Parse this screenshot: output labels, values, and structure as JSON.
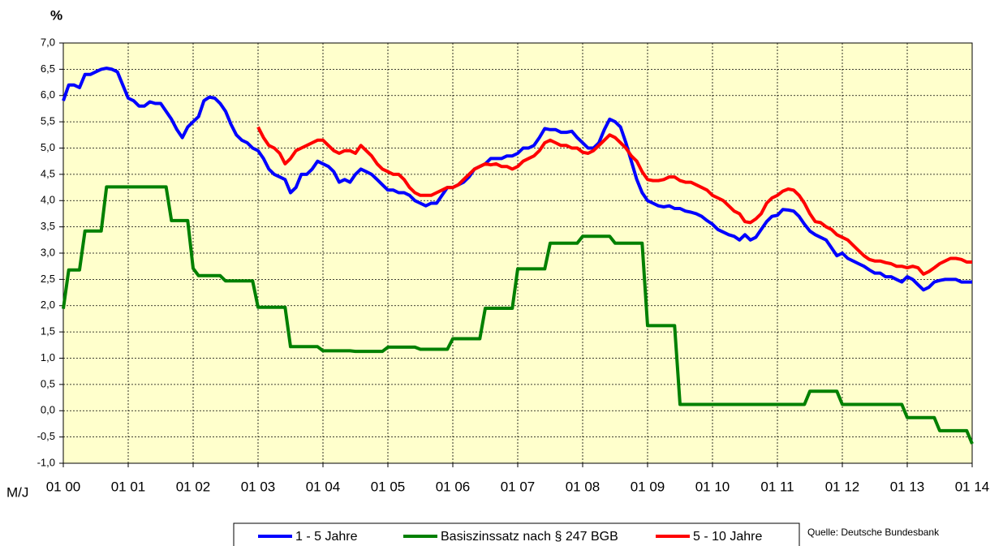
{
  "chart_data": {
    "type": "line",
    "ylabel": "%",
    "xlabel": "M/J",
    "source": "Quelle: Deutsche Bundesbank",
    "grid": true,
    "background": "#ffffcc",
    "categories": [
      "01 00",
      null,
      null,
      null,
      null,
      null,
      null,
      null,
      null,
      null,
      null,
      null,
      "01 01",
      null,
      null,
      null,
      null,
      null,
      null,
      null,
      null,
      null,
      null,
      null,
      "01 02",
      null,
      null,
      null,
      null,
      null,
      null,
      null,
      null,
      null,
      null,
      null,
      "01 03",
      null,
      null,
      null,
      null,
      null,
      null,
      null,
      null,
      null,
      null,
      null,
      "01 04",
      null,
      null,
      null,
      null,
      null,
      null,
      null,
      null,
      null,
      null,
      null,
      "01 05",
      null,
      null,
      null,
      null,
      null,
      null,
      null,
      null,
      null,
      null,
      null,
      "01 06",
      null,
      null,
      null,
      null,
      null,
      null,
      null,
      null,
      null,
      null,
      null,
      "01 07",
      null,
      null,
      null,
      null,
      null,
      null,
      null,
      null,
      null,
      null,
      null,
      "01 08",
      null,
      null,
      null,
      null,
      null,
      null,
      null,
      null,
      null,
      null,
      null,
      "01 09",
      null,
      null,
      null,
      null,
      null,
      null,
      null,
      null,
      null,
      null,
      null,
      "01 10",
      null,
      null,
      null,
      null,
      null,
      null,
      null,
      null,
      null,
      null,
      null,
      "01 11",
      null,
      null,
      null,
      null,
      null,
      null,
      null,
      null,
      null,
      null,
      null,
      "01 12",
      null,
      null,
      null,
      null,
      null,
      null,
      null,
      null,
      null,
      null,
      null,
      "01 13",
      null,
      null,
      null,
      null,
      null,
      null,
      null,
      null,
      null,
      null,
      null,
      "01 14"
    ],
    "ylim": [
      -1,
      7
    ],
    "yticks": [
      {
        "value": -1,
        "label": "-1,0"
      },
      {
        "value": -0.5,
        "label": "-0,5"
      },
      {
        "value": 0,
        "label": "0,0"
      },
      {
        "value": 0.5,
        "label": "0,5"
      },
      {
        "value": 1,
        "label": "1,0"
      },
      {
        "value": 1.5,
        "label": "1,5"
      },
      {
        "value": 2,
        "label": "2,0"
      },
      {
        "value": 2.5,
        "label": "2,5"
      },
      {
        "value": 3,
        "label": "3,0"
      },
      {
        "value": 3.5,
        "label": "3,5"
      },
      {
        "value": 4,
        "label": "4,0"
      },
      {
        "value": 4.5,
        "label": "4,5"
      },
      {
        "value": 5,
        "label": "5,0"
      },
      {
        "value": 5.5,
        "label": "5,5"
      },
      {
        "value": 6,
        "label": "6,0"
      },
      {
        "value": 6.5,
        "label": "6,5"
      },
      {
        "value": 7,
        "label": "7,0"
      }
    ],
    "series": [
      {
        "name": "1 - 5 Jahre",
        "color": "#0000ff",
        "values": [
          5.9,
          6.2,
          6.2,
          6.15,
          6.4,
          6.4,
          6.45,
          6.5,
          6.52,
          6.5,
          6.45,
          6.2,
          5.95,
          5.9,
          5.8,
          5.8,
          5.88,
          5.85,
          5.85,
          5.7,
          5.55,
          5.35,
          5.2,
          5.4,
          5.5,
          5.6,
          5.9,
          5.97,
          5.95,
          5.85,
          5.7,
          5.45,
          5.25,
          5.15,
          5.1,
          5.0,
          4.95,
          4.8,
          4.6,
          4.5,
          4.45,
          4.4,
          4.15,
          4.25,
          4.5,
          4.5,
          4.6,
          4.75,
          4.7,
          4.65,
          4.55,
          4.35,
          4.4,
          4.35,
          4.5,
          4.6,
          4.55,
          4.5,
          4.4,
          4.3,
          4.2,
          4.2,
          4.15,
          4.15,
          4.1,
          4.0,
          3.95,
          3.9,
          3.95,
          3.95,
          4.1,
          4.25,
          4.25,
          4.3,
          4.35,
          4.45,
          4.6,
          4.65,
          4.7,
          4.8,
          4.8,
          4.8,
          4.85,
          4.85,
          4.9,
          5.0,
          5.0,
          5.05,
          5.2,
          5.37,
          5.35,
          5.35,
          5.3,
          5.3,
          5.32,
          5.2,
          5.1,
          5.0,
          5.0,
          5.1,
          5.35,
          5.55,
          5.5,
          5.4,
          5.1,
          4.75,
          4.4,
          4.15,
          4.0,
          3.95,
          3.9,
          3.88,
          3.9,
          3.85,
          3.85,
          3.8,
          3.78,
          3.75,
          3.7,
          3.62,
          3.55,
          3.45,
          3.4,
          3.35,
          3.32,
          3.25,
          3.35,
          3.25,
          3.3,
          3.45,
          3.6,
          3.7,
          3.72,
          3.83,
          3.82,
          3.8,
          3.7,
          3.55,
          3.42,
          3.35,
          3.3,
          3.25,
          3.1,
          2.95,
          3.0,
          2.9,
          2.85,
          2.8,
          2.75,
          2.68,
          2.62,
          2.62,
          2.55,
          2.55,
          2.5,
          2.45,
          2.55,
          2.5,
          2.4,
          2.3,
          2.35,
          2.45,
          2.48,
          2.5,
          2.5,
          2.5,
          2.45,
          2.45,
          2.45
        ]
      },
      {
        "name": "Basiszinssatz nach § 247 BGB",
        "color": "#008000",
        "values": [
          1.94,
          2.68,
          2.68,
          2.68,
          3.42,
          3.42,
          3.42,
          3.42,
          4.26,
          4.26,
          4.26,
          4.26,
          4.26,
          4.26,
          4.26,
          4.26,
          4.26,
          4.26,
          4.26,
          4.26,
          3.62,
          3.62,
          3.62,
          3.62,
          2.71,
          2.57,
          2.57,
          2.57,
          2.57,
          2.57,
          2.47,
          2.47,
          2.47,
          2.47,
          2.47,
          2.47,
          1.97,
          1.97,
          1.97,
          1.97,
          1.97,
          1.97,
          1.22,
          1.22,
          1.22,
          1.22,
          1.22,
          1.22,
          1.14,
          1.14,
          1.14,
          1.14,
          1.14,
          1.14,
          1.13,
          1.13,
          1.13,
          1.13,
          1.13,
          1.13,
          1.21,
          1.21,
          1.21,
          1.21,
          1.21,
          1.21,
          1.17,
          1.17,
          1.17,
          1.17,
          1.17,
          1.17,
          1.37,
          1.37,
          1.37,
          1.37,
          1.37,
          1.37,
          1.95,
          1.95,
          1.95,
          1.95,
          1.95,
          1.95,
          2.7,
          2.7,
          2.7,
          2.7,
          2.7,
          2.7,
          3.19,
          3.19,
          3.19,
          3.19,
          3.19,
          3.19,
          3.32,
          3.32,
          3.32,
          3.32,
          3.32,
          3.32,
          3.19,
          3.19,
          3.19,
          3.19,
          3.19,
          3.19,
          1.62,
          1.62,
          1.62,
          1.62,
          1.62,
          1.62,
          0.12,
          0.12,
          0.12,
          0.12,
          0.12,
          0.12,
          0.12,
          0.12,
          0.12,
          0.12,
          0.12,
          0.12,
          0.12,
          0.12,
          0.12,
          0.12,
          0.12,
          0.12,
          0.12,
          0.12,
          0.12,
          0.12,
          0.12,
          0.12,
          0.37,
          0.37,
          0.37,
          0.37,
          0.37,
          0.37,
          0.12,
          0.12,
          0.12,
          0.12,
          0.12,
          0.12,
          0.12,
          0.12,
          0.12,
          0.12,
          0.12,
          0.12,
          -0.13,
          -0.13,
          -0.13,
          -0.13,
          -0.13,
          -0.13,
          -0.38,
          -0.38,
          -0.38,
          -0.38,
          -0.38,
          -0.38,
          -0.63
        ]
      },
      {
        "name": "5 - 10 Jahre",
        "color": "#ff0000",
        "values": [
          null,
          null,
          null,
          null,
          null,
          null,
          null,
          null,
          null,
          null,
          null,
          null,
          null,
          null,
          null,
          null,
          null,
          null,
          null,
          null,
          null,
          null,
          null,
          null,
          null,
          null,
          null,
          null,
          null,
          null,
          null,
          null,
          null,
          null,
          null,
          null,
          5.4,
          5.2,
          5.05,
          5.0,
          4.9,
          4.7,
          4.8,
          4.95,
          5.0,
          5.05,
          5.1,
          5.15,
          5.15,
          5.05,
          4.95,
          4.9,
          4.95,
          4.95,
          4.9,
          5.05,
          4.95,
          4.85,
          4.7,
          4.6,
          4.55,
          4.5,
          4.5,
          4.4,
          4.25,
          4.15,
          4.1,
          4.1,
          4.1,
          4.15,
          4.2,
          4.25,
          4.25,
          4.3,
          4.4,
          4.5,
          4.6,
          4.65,
          4.7,
          4.68,
          4.7,
          4.65,
          4.65,
          4.6,
          4.65,
          4.75,
          4.8,
          4.85,
          4.95,
          5.1,
          5.15,
          5.1,
          5.05,
          5.05,
          5.0,
          5.0,
          4.92,
          4.9,
          4.95,
          5.05,
          5.15,
          5.25,
          5.2,
          5.1,
          5.0,
          4.85,
          4.75,
          4.55,
          4.4,
          4.38,
          4.38,
          4.4,
          4.45,
          4.45,
          4.38,
          4.35,
          4.35,
          4.3,
          4.25,
          4.2,
          4.1,
          4.05,
          4.0,
          3.9,
          3.8,
          3.75,
          3.6,
          3.58,
          3.65,
          3.75,
          3.95,
          4.05,
          4.1,
          4.18,
          4.22,
          4.2,
          4.1,
          3.95,
          3.75,
          3.6,
          3.58,
          3.5,
          3.45,
          3.35,
          3.3,
          3.25,
          3.15,
          3.05,
          2.95,
          2.88,
          2.85,
          2.85,
          2.82,
          2.8,
          2.75,
          2.75,
          2.72,
          2.75,
          2.72,
          2.6,
          2.65,
          2.72,
          2.8,
          2.85,
          2.9,
          2.9,
          2.88,
          2.83,
          2.83
        ]
      }
    ]
  }
}
